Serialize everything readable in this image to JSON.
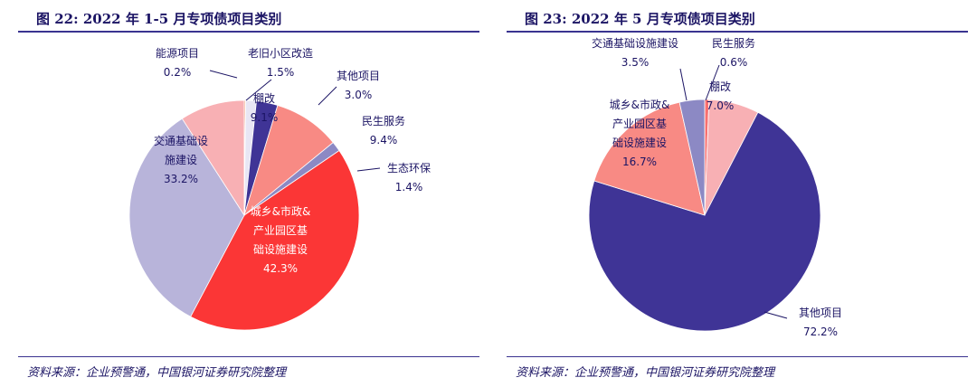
{
  "chart_data": [
    {
      "type": "pie",
      "title": "图 22:  2022 年 1-5 月专项债项目类别",
      "source": "资料来源：企业预警通，中国银河证券研究院整理",
      "slices": [
        {
          "name": "能源项目",
          "value_label": "0.2%",
          "value": 0.2,
          "color": "#f0a07a"
        },
        {
          "name": "老旧小区改造",
          "value_label": "1.5%",
          "value": 1.5,
          "color": "#e8e6f4"
        },
        {
          "name": "其他项目",
          "value_label": "3.0%",
          "value": 3.0,
          "color": "#3f3496"
        },
        {
          "name": "民生服务",
          "value_label": "9.4%",
          "value": 9.4,
          "color": "#f88a84"
        },
        {
          "name": "生态环保",
          "value_label": "1.4%",
          "value": 1.4,
          "color": "#8c89c4"
        },
        {
          "name": "城乡&市政&产业园区基础设施建设",
          "value_label": "42.3%",
          "value": 42.3,
          "color": "#fb3636"
        },
        {
          "name": "交通基础设施建设",
          "value_label": "33.2%",
          "value": 33.2,
          "color": "#b8b4da"
        },
        {
          "name": "棚改",
          "value_label": "9.1%",
          "value": 9.1,
          "color": "#f8b0b4"
        }
      ]
    },
    {
      "type": "pie",
      "title": "图 23:  2022 年 5 月专项债项目类别",
      "source": "资料来源：企业预警通，中国银河证券研究院整理",
      "slices": [
        {
          "name": "民生服务",
          "value_label": "0.6%",
          "value": 0.6,
          "color": "#f87070"
        },
        {
          "name": "棚改",
          "value_label": "7.0%",
          "value": 7.0,
          "color": "#f8b0b4"
        },
        {
          "name": "其他项目",
          "value_label": "72.2%",
          "value": 72.2,
          "color": "#3f3496"
        },
        {
          "name": "城乡&市政&产业园区基础设施建设",
          "value_label": "16.7%",
          "value": 16.7,
          "color": "#f88a84"
        },
        {
          "name": "交通基础设施建设",
          "value_label": "3.5%",
          "value": 3.5,
          "color": "#8c89c4"
        }
      ]
    }
  ]
}
